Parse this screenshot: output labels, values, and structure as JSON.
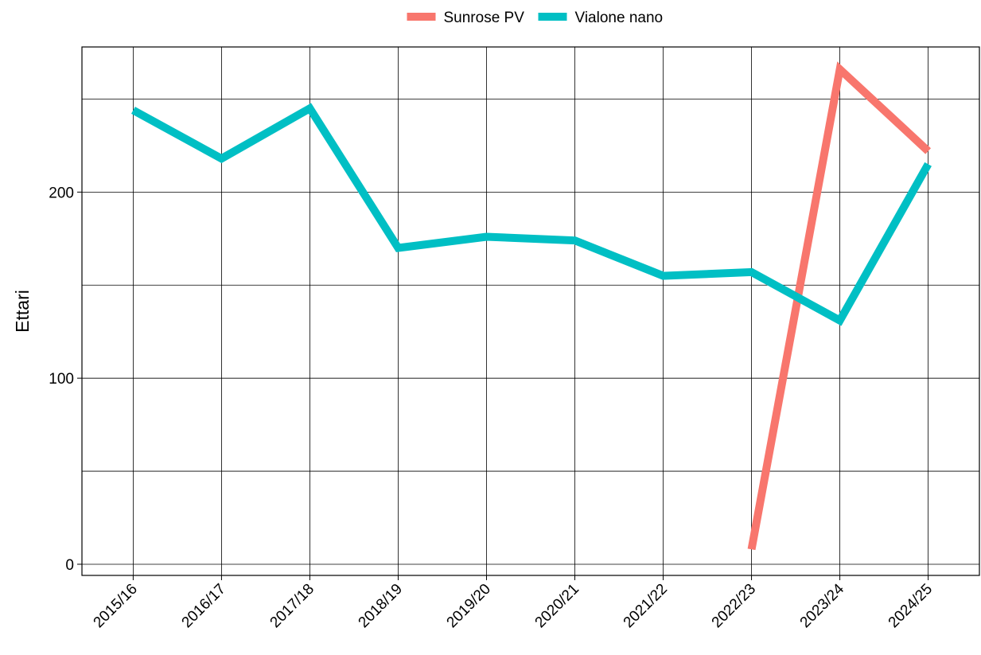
{
  "chart_data": {
    "type": "line",
    "y_label": "Ettari",
    "categories": [
      "2015/16",
      "2016/17",
      "2017/18",
      "2018/19",
      "2019/20",
      "2020/21",
      "2021/22",
      "2022/23",
      "2023/24",
      "2024/25"
    ],
    "series": [
      {
        "name": "Sunrose PV",
        "color": "#f8766d",
        "values": [
          null,
          null,
          null,
          null,
          null,
          null,
          null,
          8,
          266,
          222
        ]
      },
      {
        "name": "Vialone nano",
        "color": "#00bfc4",
        "values": [
          244,
          218,
          245,
          170,
          176,
          174,
          155,
          157,
          131,
          215
        ]
      }
    ],
    "ylim": [
      -6,
      278
    ],
    "yticks": [
      0,
      100,
      200
    ],
    "yticks_minor": [
      50,
      150,
      250
    ],
    "grid": true,
    "legend": "top"
  }
}
